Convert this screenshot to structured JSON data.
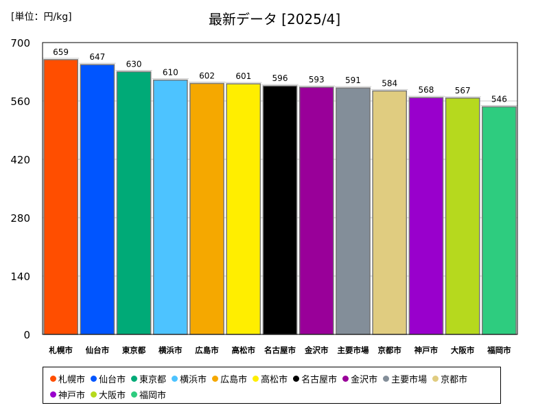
{
  "unit_label": "[単位：円/kg]",
  "chart_data": {
    "type": "bar",
    "title": "最新データ [2025/4]",
    "xlabel": "",
    "ylabel": "",
    "ylim": [
      0,
      700
    ],
    "yticks": [
      0,
      140,
      280,
      420,
      560,
      700
    ],
    "grid": true,
    "legend_position": "bottom",
    "categories": [
      "札幌市",
      "仙台市",
      "東京都",
      "横浜市",
      "広島市",
      "高松市",
      "名古屋市",
      "金沢市",
      "主要市場",
      "京都市",
      "神戸市",
      "大阪市",
      "福岡市"
    ],
    "values": [
      659,
      647,
      630,
      610,
      602,
      601,
      596,
      593,
      591,
      584,
      568,
      567,
      546
    ],
    "colors": [
      "#ff4e00",
      "#0055ff",
      "#00aa77",
      "#4dc3ff",
      "#f5a800",
      "#ffee00",
      "#000000",
      "#990099",
      "#838e99",
      "#e0cc80",
      "#9900cc",
      "#b6d91e",
      "#2ecc7f"
    ]
  }
}
